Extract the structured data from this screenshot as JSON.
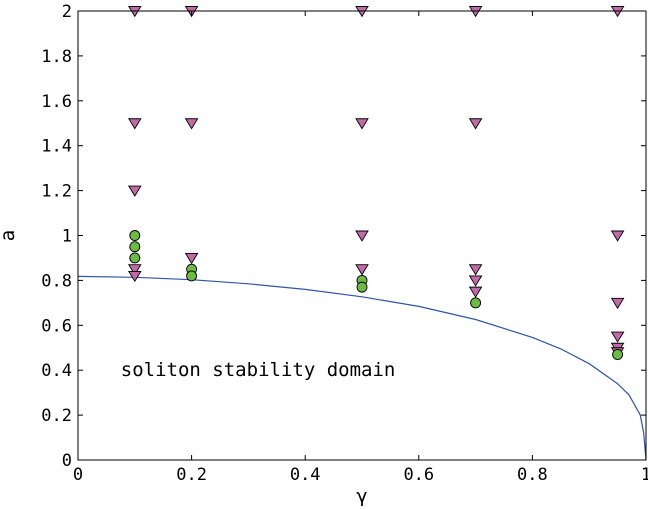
{
  "chart_data": {
    "type": "scatter",
    "xlabel": "γ",
    "ylabel": "a",
    "xlim": [
      0,
      1
    ],
    "ylim": [
      0,
      2
    ],
    "xticks": [
      "0",
      "0.2",
      "0.4",
      "0.6",
      "0.8",
      "1"
    ],
    "yticks": [
      "0",
      "0.2",
      "0.4",
      "0.6",
      "0.8",
      "1",
      "1.2",
      "1.4",
      "1.6",
      "1.8",
      "2"
    ],
    "annotation": "soliton stability domain",
    "grid": false,
    "colors": {
      "stable": "#6dbb45",
      "unstable": "#c06aa8",
      "curve": "#2e55a6"
    },
    "series": [
      {
        "marker": "circle",
        "points": [
          {
            "x": 0.1,
            "y": 1.0
          },
          {
            "x": 0.1,
            "y": 0.95
          },
          {
            "x": 0.1,
            "y": 0.9
          },
          {
            "x": 0.2,
            "y": 0.85
          },
          {
            "x": 0.2,
            "y": 0.82
          },
          {
            "x": 0.5,
            "y": 0.8
          },
          {
            "x": 0.5,
            "y": 0.77
          },
          {
            "x": 0.7,
            "y": 0.7
          },
          {
            "x": 0.95,
            "y": 0.47
          }
        ]
      },
      {
        "marker": "triangle-down",
        "points": [
          {
            "x": 0.1,
            "y": 2.0
          },
          {
            "x": 0.1,
            "y": 1.5
          },
          {
            "x": 0.1,
            "y": 1.2
          },
          {
            "x": 0.1,
            "y": 0.85
          },
          {
            "x": 0.1,
            "y": 0.82
          },
          {
            "x": 0.2,
            "y": 2.0
          },
          {
            "x": 0.2,
            "y": 1.5
          },
          {
            "x": 0.2,
            "y": 0.9
          },
          {
            "x": 0.5,
            "y": 2.0
          },
          {
            "x": 0.5,
            "y": 1.5
          },
          {
            "x": 0.5,
            "y": 1.0
          },
          {
            "x": 0.5,
            "y": 0.85
          },
          {
            "x": 0.7,
            "y": 2.0
          },
          {
            "x": 0.7,
            "y": 1.5
          },
          {
            "x": 0.7,
            "y": 0.85
          },
          {
            "x": 0.7,
            "y": 0.8
          },
          {
            "x": 0.7,
            "y": 0.75
          },
          {
            "x": 0.95,
            "y": 2.0
          },
          {
            "x": 0.95,
            "y": 1.0
          },
          {
            "x": 0.95,
            "y": 0.7
          },
          {
            "x": 0.95,
            "y": 0.55
          },
          {
            "x": 0.95,
            "y": 0.5
          },
          {
            "x": 0.95,
            "y": 0.48
          }
        ]
      },
      {
        "marker": "line",
        "points": [
          {
            "x": 0.0,
            "y": 0.818
          },
          {
            "x": 0.1,
            "y": 0.814
          },
          {
            "x": 0.2,
            "y": 0.803
          },
          {
            "x": 0.3,
            "y": 0.785
          },
          {
            "x": 0.4,
            "y": 0.76
          },
          {
            "x": 0.5,
            "y": 0.727
          },
          {
            "x": 0.6,
            "y": 0.684
          },
          {
            "x": 0.7,
            "y": 0.626
          },
          {
            "x": 0.8,
            "y": 0.546
          },
          {
            "x": 0.85,
            "y": 0.495
          },
          {
            "x": 0.9,
            "y": 0.429
          },
          {
            "x": 0.95,
            "y": 0.34
          },
          {
            "x": 0.97,
            "y": 0.29
          },
          {
            "x": 0.99,
            "y": 0.2
          },
          {
            "x": 0.996,
            "y": 0.12
          },
          {
            "x": 1.0,
            "y": 0.0
          }
        ]
      }
    ]
  }
}
